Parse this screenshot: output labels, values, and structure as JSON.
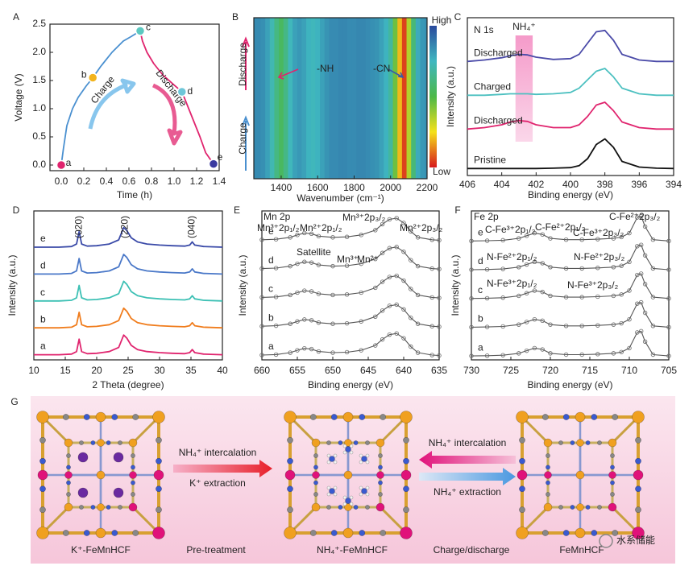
{
  "chart_data": [
    {
      "type": "line",
      "label": "A",
      "xlabel": "Time (h)",
      "ylabel": "Voltage (V)",
      "xlim": [
        -0.1,
        1.4
      ],
      "ylim": [
        -0.1,
        2.5
      ],
      "xticks": [
        {
          "value": 0,
          "label": "0.0"
        },
        0.2,
        0.4,
        0.6,
        0.8,
        {
          "value": 1,
          "label": "1.0"
        },
        1.2,
        1.4
      ],
      "yticks": [
        {
          "value": 0,
          "label": "0.0"
        },
        0.5,
        {
          "value": 1,
          "label": "1.0"
        },
        1.5,
        {
          "value": 2,
          "label": "2.0"
        },
        2.5
      ],
      "series": [
        {
          "name": "Charge",
          "color": "#4a90d0",
          "x": [
            0,
            0.02,
            0.05,
            0.1,
            0.15,
            0.22,
            0.28,
            0.35,
            0.45,
            0.55,
            0.62,
            0.7
          ],
          "values": [
            0,
            0.3,
            0.7,
            1.0,
            1.2,
            1.4,
            1.55,
            1.75,
            2.0,
            2.2,
            2.28,
            2.38
          ]
        },
        {
          "name": "Discharge",
          "color": "#e0246e",
          "x": [
            0.7,
            0.72,
            0.76,
            0.82,
            0.9,
            1.0,
            1.07,
            1.12,
            1.18,
            1.23,
            1.28,
            1.35
          ],
          "values": [
            2.38,
            2.2,
            2.0,
            1.8,
            1.6,
            1.42,
            1.3,
            1.05,
            0.75,
            0.5,
            0.22,
            0.02
          ]
        }
      ],
      "markers": [
        {
          "label": "a",
          "x": 0,
          "y": 0,
          "color": "#e0246e"
        },
        {
          "label": "b",
          "x": 0.28,
          "y": 1.55,
          "color": "#f2b41e"
        },
        {
          "label": "c",
          "x": 0.7,
          "y": 2.38,
          "color": "#5cc8c0"
        },
        {
          "label": "d",
          "x": 1.07,
          "y": 1.3,
          "color": "#6ec6d8"
        },
        {
          "label": "e",
          "x": 1.35,
          "y": 0.02,
          "color": "#3a3aa0"
        }
      ]
    },
    {
      "type": "heatmap",
      "label": "B",
      "xlabel": "Wavenumber (cm⁻¹)",
      "xlim": [
        1250,
        2200
      ],
      "xticks": [
        1400,
        1600,
        1800,
        2000,
        2200
      ],
      "x": [
        1250,
        1275,
        1300,
        1325,
        1350,
        1375,
        1400,
        1425,
        1450,
        1475,
        1500,
        1525,
        1550,
        1575,
        1600,
        1625,
        1650,
        1675,
        1700,
        1725,
        1750,
        1775,
        1800,
        1825,
        1850,
        1875,
        1900,
        1925,
        1950,
        1975,
        2000,
        2025,
        2050,
        2075,
        2100,
        2125,
        2150,
        2175,
        2200
      ],
      "values": [
        0.85,
        0.85,
        0.84,
        0.8,
        0.72,
        0.62,
        0.55,
        0.63,
        0.74,
        0.8,
        0.82,
        0.8,
        0.76,
        0.74,
        0.76,
        0.8,
        0.83,
        0.85,
        0.85,
        0.86,
        0.86,
        0.85,
        0.85,
        0.86,
        0.86,
        0.85,
        0.84,
        0.83,
        0.8,
        0.76,
        0.68,
        0.45,
        0.2,
        0.05,
        0.35,
        0.6,
        0.78,
        0.82,
        0.84
      ],
      "colormap": [
        "#d7191c",
        "#f5e11a",
        "#4cb848",
        "#3fb7c0",
        "#2a4a9c"
      ],
      "colorbar_high": "High",
      "colorbar_low": "Low",
      "annotations": [
        {
          "text": "-NH",
          "color": "#e0246e"
        },
        {
          "text": "-CN",
          "color": "#3a5aa8"
        },
        {
          "text": "Discharge",
          "color": "#e0246e"
        },
        {
          "text": "Charge",
          "color": "#4a90d0"
        }
      ]
    },
    {
      "type": "line",
      "label": "C",
      "xlabel": "Binding energy (eV)",
      "ylabel": "Intensity (a.u.)",
      "legend": "inline",
      "xlim": [
        406,
        394
      ],
      "ylim": [
        -0.2,
        5.4
      ],
      "xticks": [
        406,
        404,
        402,
        400,
        398,
        396,
        394
      ],
      "x": [
        406,
        405,
        404,
        403.5,
        403,
        402.5,
        402,
        401,
        400,
        399.5,
        399,
        398.5,
        398,
        397.5,
        397,
        396,
        395,
        394
      ],
      "series": [
        {
          "name": "Pristine",
          "color": "#111111",
          "values": [
            0.05,
            0.05,
            0.05,
            0.05,
            0.05,
            0.05,
            0.05,
            0.06,
            0.08,
            0.15,
            0.4,
            0.9,
            1.1,
            0.8,
            0.3,
            0.1,
            0.06,
            0.05
          ]
        },
        {
          "name": "Discharged",
          "color": "#e0246e",
          "values": [
            1.45,
            1.5,
            1.6,
            1.7,
            1.75,
            1.72,
            1.6,
            1.5,
            1.5,
            1.6,
            1.9,
            2.3,
            2.4,
            2.1,
            1.7,
            1.5,
            1.45,
            1.45
          ]
        },
        {
          "name": "Charged",
          "color": "#4cc0c0",
          "values": [
            2.65,
            2.65,
            2.68,
            2.7,
            2.7,
            2.7,
            2.68,
            2.7,
            2.75,
            2.9,
            3.2,
            3.5,
            3.6,
            3.3,
            2.9,
            2.7,
            2.65,
            2.65
          ]
        },
        {
          "name": "Discharged",
          "color": "#4a4aa8",
          "values": [
            3.85,
            3.9,
            3.98,
            4.05,
            4.1,
            4.08,
            4.0,
            3.92,
            3.95,
            4.1,
            4.5,
            4.9,
            4.95,
            4.6,
            4.1,
            3.9,
            3.85,
            3.85
          ]
        }
      ],
      "highlight": {
        "label": "NH₄⁺",
        "x": [
          403.2,
          402.2
        ],
        "color": "#f06ab0"
      },
      "annotations": [
        {
          "text": "N 1s",
          "color": "#222222"
        }
      ]
    },
    {
      "type": "line",
      "label": "D",
      "xlabel": "2 Theta (degree)",
      "ylabel": "Intensity (a.u.)",
      "legend": "inline",
      "xlim": [
        10,
        40
      ],
      "ylim": [
        -0.2,
        7
      ],
      "xticks": [
        10,
        15,
        20,
        25,
        30,
        35,
        40
      ],
      "x": [
        10,
        12,
        14,
        16,
        16.8,
        17.2,
        17.6,
        18.5,
        20,
        22,
        23.5,
        24.3,
        24.8,
        25.5,
        26.5,
        28,
        30,
        32,
        34,
        34.8,
        35.2,
        35.6,
        37,
        40
      ],
      "series": [
        {
          "name": "a",
          "color": "#e0246e",
          "values": [
            0.05,
            0.05,
            0.05,
            0.08,
            0.2,
            0.8,
            0.2,
            0.1,
            0.12,
            0.2,
            0.4,
            1.0,
            0.85,
            0.5,
            0.3,
            0.2,
            0.15,
            0.12,
            0.1,
            0.15,
            0.3,
            0.15,
            0.08,
            0.05
          ]
        },
        {
          "name": "b",
          "color": "#f07c1c",
          "values": [
            1.35,
            1.35,
            1.35,
            1.38,
            1.5,
            2.1,
            1.5,
            1.4,
            1.42,
            1.5,
            1.7,
            2.3,
            2.15,
            1.8,
            1.6,
            1.5,
            1.45,
            1.42,
            1.4,
            1.45,
            1.6,
            1.45,
            1.38,
            1.35
          ]
        },
        {
          "name": "c",
          "color": "#3cc0b4",
          "values": [
            2.65,
            2.65,
            2.65,
            2.68,
            2.8,
            3.4,
            2.8,
            2.7,
            2.72,
            2.8,
            3.0,
            3.6,
            3.45,
            3.1,
            2.9,
            2.8,
            2.75,
            2.72,
            2.7,
            2.75,
            2.9,
            2.75,
            2.68,
            2.65
          ]
        },
        {
          "name": "d",
          "color": "#4a78c8",
          "values": [
            3.95,
            3.95,
            3.95,
            3.98,
            4.1,
            4.7,
            4.1,
            4.0,
            4.02,
            4.1,
            4.3,
            4.9,
            4.75,
            4.4,
            4.2,
            4.1,
            4.05,
            4.02,
            4.0,
            4.05,
            4.2,
            4.05,
            3.98,
            3.95
          ]
        },
        {
          "name": "e",
          "color": "#3a4aa8",
          "values": [
            5.25,
            5.25,
            5.25,
            5.28,
            5.4,
            6.0,
            5.4,
            5.3,
            5.32,
            5.4,
            5.6,
            6.2,
            6.05,
            5.7,
            5.5,
            5.4,
            5.35,
            5.32,
            5.3,
            5.35,
            5.5,
            5.35,
            5.28,
            5.25
          ]
        }
      ],
      "peaks": [
        {
          "x": 17.2,
          "label": "(020)"
        },
        {
          "x": 24.5,
          "label": "(220)"
        },
        {
          "x": 35.2,
          "label": "(040)"
        }
      ]
    },
    {
      "type": "line",
      "label": "E",
      "xlabel": "Binding energy (eV)",
      "ylabel": "Intensity (a.u.)",
      "legend": "inline",
      "point_markers": true,
      "xlim": [
        660,
        635
      ],
      "ylim": [
        -0.1,
        6.1
      ],
      "xticks": [
        660,
        655,
        650,
        645,
        640,
        635
      ],
      "x": [
        660,
        658,
        656,
        655,
        654,
        653,
        652,
        650,
        648,
        646,
        644,
        643,
        642,
        641,
        640,
        639,
        638,
        636,
        635
      ],
      "series": [
        {
          "name": "a",
          "color": "#555555",
          "values": [
            0.1,
            0.12,
            0.2,
            0.3,
            0.38,
            0.35,
            0.25,
            0.2,
            0.22,
            0.3,
            0.5,
            0.75,
            0.95,
            1.0,
            0.8,
            0.45,
            0.2,
            0.1,
            0.08
          ]
        },
        {
          "name": "b",
          "color": "#555555",
          "values": [
            1.3,
            1.32,
            1.4,
            1.5,
            1.58,
            1.55,
            1.45,
            1.4,
            1.42,
            1.5,
            1.7,
            1.95,
            2.15,
            2.2,
            2.0,
            1.65,
            1.4,
            1.3,
            1.28
          ]
        },
        {
          "name": "c",
          "color": "#555555",
          "values": [
            2.5,
            2.52,
            2.6,
            2.7,
            2.78,
            2.75,
            2.65,
            2.6,
            2.62,
            2.7,
            2.9,
            3.15,
            3.35,
            3.4,
            3.2,
            2.85,
            2.6,
            2.5,
            2.48
          ]
        },
        {
          "name": "d",
          "color": "#555555",
          "values": [
            3.7,
            3.72,
            3.8,
            3.9,
            3.98,
            3.95,
            3.85,
            3.8,
            3.82,
            3.9,
            4.1,
            4.35,
            4.55,
            4.6,
            4.4,
            4.05,
            3.8,
            3.7,
            3.68
          ]
        },
        {
          "name": "e",
          "color": "#555555",
          "values": [
            4.9,
            4.92,
            5.0,
            5.1,
            5.18,
            5.15,
            5.05,
            5.0,
            5.02,
            5.1,
            5.3,
            5.55,
            5.75,
            5.8,
            5.6,
            5.25,
            5.0,
            4.9,
            4.88
          ]
        }
      ],
      "annotations": [
        {
          "text": "Mn 2p",
          "color": "#222222"
        },
        {
          "text": "Mn³⁺2p₁/₂",
          "color": "#e8801e"
        },
        {
          "text": "Mn²⁺2p₁/₂",
          "color": "#3cb0c0"
        },
        {
          "text": "Mn³⁺2p₃/₂",
          "color": "#3a6ac8"
        },
        {
          "text": "Mn²⁺2p₃/₂",
          "color": "#e0246e"
        },
        {
          "text": "Satellite",
          "color": "#222222"
        },
        {
          "text": "Mn³⁺",
          "color": "#e8a01e"
        },
        {
          "text": "Mn²⁺",
          "color": "#40a840"
        }
      ]
    },
    {
      "type": "line",
      "label": "F",
      "xlabel": "Binding energy (eV)",
      "ylabel": "Intensity (a.u.)",
      "legend": "inline",
      "point_markers": true,
      "xlim": [
        730,
        705
      ],
      "ylim": [
        -0.1,
        5.6
      ],
      "xticks": [
        730,
        725,
        720,
        715,
        710,
        705
      ],
      "x": [
        730,
        728,
        726,
        724,
        723,
        722,
        721,
        720,
        718,
        716,
        714,
        712,
        711,
        710,
        709,
        708.5,
        708,
        707,
        705
      ],
      "series": [
        {
          "name": "a",
          "color": "#555555",
          "values": [
            0.05,
            0.06,
            0.08,
            0.15,
            0.25,
            0.35,
            0.3,
            0.15,
            0.1,
            0.1,
            0.12,
            0.15,
            0.2,
            0.35,
            0.95,
            1.0,
            0.6,
            0.1,
            0.05
          ]
        },
        {
          "name": "b",
          "color": "#555555",
          "values": [
            1.15,
            1.16,
            1.18,
            1.25,
            1.35,
            1.45,
            1.4,
            1.25,
            1.2,
            1.2,
            1.22,
            1.25,
            1.3,
            1.45,
            2.05,
            2.1,
            1.7,
            1.2,
            1.15
          ]
        },
        {
          "name": "c",
          "color": "#555555",
          "values": [
            2.25,
            2.26,
            2.28,
            2.35,
            2.45,
            2.55,
            2.5,
            2.35,
            2.3,
            2.3,
            2.32,
            2.35,
            2.4,
            2.55,
            3.15,
            3.2,
            2.8,
            2.3,
            2.25
          ]
        },
        {
          "name": "d",
          "color": "#555555",
          "values": [
            3.35,
            3.36,
            3.38,
            3.45,
            3.55,
            3.65,
            3.6,
            3.45,
            3.4,
            3.4,
            3.42,
            3.45,
            3.5,
            3.65,
            4.25,
            4.3,
            3.9,
            3.4,
            3.35
          ]
        },
        {
          "name": "e",
          "color": "#555555",
          "values": [
            4.45,
            4.46,
            4.48,
            4.55,
            4.65,
            4.75,
            4.7,
            4.55,
            4.5,
            4.5,
            4.52,
            4.55,
            4.6,
            4.75,
            5.35,
            5.4,
            5.0,
            4.5,
            4.45
          ]
        }
      ],
      "annotations": [
        {
          "text": "Fe 2p",
          "color": "#222222"
        },
        {
          "text": "C-Fe³⁺2p₁/₂",
          "color": "#b8a020"
        },
        {
          "text": "C-Fe²⁺2p₁/₂",
          "color": "#3cb0c0"
        },
        {
          "text": "C-Fe³⁺2p₃/₂",
          "color": "#3a9a3a"
        },
        {
          "text": "C-Fe²⁺2p₃/₂",
          "color": "#e0246e"
        },
        {
          "text": "N-Fe²⁺2p₁/₂",
          "color": "#8a3ab0"
        },
        {
          "text": "N-Fe²⁺2p₃/₂",
          "color": "#3a6ac8"
        },
        {
          "text": "N-Fe³⁺2p₁/₂",
          "color": "#8a8a20"
        },
        {
          "text": "N-Fe³⁺2p₃/₂",
          "color": "#a0204a"
        }
      ]
    }
  ],
  "diagram": {
    "label": "G",
    "structures": [
      {
        "name": "K⁺-FeMnHCF",
        "color": "#222222"
      },
      {
        "name": "NH₄⁺-FeMnHCF",
        "color": "#e0246e"
      },
      {
        "name": "FeMnHCF",
        "color": "#5aaee0"
      }
    ],
    "steps": [
      {
        "name": "Pre-treatment",
        "top": "NH₄⁺ intercalation",
        "bottom": "K⁺ extraction"
      },
      {
        "name": "Charge/discharge",
        "top": "NH₄⁺ intercalation",
        "bottom": "NH₄⁺ extraction"
      }
    ],
    "watermark": "水系储能"
  }
}
